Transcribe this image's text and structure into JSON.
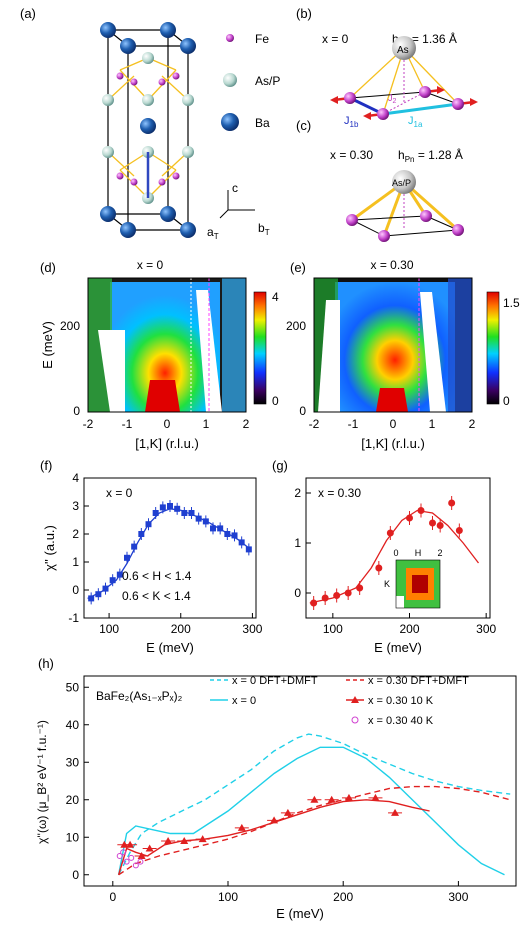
{
  "panels": {
    "a": {
      "label": "(a)",
      "legend": [
        {
          "name": "Fe",
          "color": "#c040c8"
        },
        {
          "name": "As/P",
          "color": "#b8d8d0"
        },
        {
          "name": "Ba",
          "color": "#1f5fb0"
        }
      ],
      "axes": {
        "c": "c",
        "a": "a",
        "a_sub": "T",
        "b": "b",
        "b_sub": "T"
      }
    },
    "b": {
      "label": "(b)",
      "x_text": "x = 0",
      "h_text": "h",
      "h_sub": "Pn",
      "h_value": " = 1.36 Å",
      "atom_label": "As",
      "j1b_main": "J",
      "j1b_sub": "1b",
      "j1a_main": "J",
      "j1a_sub": "1a",
      "j2_main": "J",
      "j2_sub": "2"
    },
    "c": {
      "label": "(c)",
      "x_text": "x = 0.30",
      "h_text": "h",
      "h_sub": "Pn",
      "h_value": " = 1.28 Å",
      "atom_label": "As/P"
    },
    "d": {
      "label": "(d)",
      "title": "x = 0",
      "ylabel": "E (meV)",
      "xlabel": "[1,K] (r.l.u.)",
      "xticks": [
        "-2",
        "-1",
        "0",
        "1",
        "2"
      ],
      "yticks": [
        "0",
        "200"
      ],
      "cbar_ticks": [
        "4",
        "0"
      ]
    },
    "e": {
      "label": "(e)",
      "title": "x = 0.30",
      "xlabel": "[1,K] (r.l.u.)",
      "xticks": [
        "-2",
        "-1",
        "0",
        "1",
        "2"
      ],
      "yticks": [
        "0",
        "200"
      ],
      "cbar_ticks": [
        "1.5",
        "0"
      ]
    },
    "f": {
      "label": "(f)",
      "ylabel": "χ'' (a.u.)",
      "xlabel": "E (meV)",
      "text_x": "x = 0",
      "text_h": "0.6 < H < 1.4",
      "text_k": "0.6 < K < 1.4",
      "xticks": [
        "100",
        "200",
        "300"
      ],
      "yticks": [
        "-1",
        "0",
        "1",
        "2",
        "3",
        "4"
      ]
    },
    "g": {
      "label": "(g)",
      "xlabel": "E (meV)",
      "text_x": "x = 0.30",
      "inset_xticks": [
        "0",
        "H",
        "2"
      ],
      "inset_ylabel": "K",
      "xticks": [
        "100",
        "200",
        "300"
      ],
      "yticks": [
        "0",
        "1",
        "2"
      ]
    },
    "h": {
      "label": "(h)",
      "ylabel": "χ''(ω) (μ_B² eV⁻¹ f.u.⁻¹)",
      "xlabel": "E (meV)",
      "compound": "BaFe₂(As₁₋ₓPₓ)₂",
      "legend": [
        "x = 0  DFT+DMFT",
        "x = 0",
        "x = 0.30 DFT+DMFT",
        "x = 0.30 10 K",
        "x = 0.30 40 K"
      ],
      "xticks": [
        "0",
        "100",
        "200",
        "300"
      ],
      "yticks": [
        "0",
        "10",
        "20",
        "30",
        "40",
        "50"
      ]
    }
  },
  "colors": {
    "blue": "#1f3fd0",
    "red": "#e02020",
    "cyan": "#20d0e8",
    "darkred": "#e02020",
    "magenta": "#d040d0"
  },
  "chart_data": [
    {
      "type": "scatter",
      "panel": "f",
      "xlim": [
        65,
        305
      ],
      "ylim": [
        -1,
        4
      ],
      "series": [
        {
          "kind": "points",
          "x": [
            75,
            85,
            95,
            105,
            115,
            125,
            135,
            145,
            155,
            165,
            175,
            185,
            195,
            205,
            215,
            225,
            235,
            245,
            255,
            265,
            275,
            285,
            295
          ],
          "y": [
            -0.3,
            -0.15,
            0.05,
            0.35,
            0.55,
            1.15,
            1.55,
            2.0,
            2.35,
            2.75,
            2.95,
            3.0,
            2.9,
            2.75,
            2.75,
            2.55,
            2.45,
            2.2,
            2.2,
            2.0,
            1.95,
            1.7,
            1.45
          ]
        },
        {
          "kind": "fit",
          "x": [
            70,
            90,
            110,
            125,
            140,
            155,
            170,
            185,
            200,
            220,
            240,
            260,
            280,
            295
          ],
          "y": [
            -0.3,
            -0.05,
            0.35,
            0.95,
            1.7,
            2.35,
            2.75,
            2.9,
            2.85,
            2.65,
            2.4,
            2.1,
            1.8,
            1.5
          ]
        }
      ]
    },
    {
      "type": "scatter",
      "panel": "g",
      "xlim": [
        65,
        305
      ],
      "ylim": [
        -0.5,
        2.3
      ],
      "series": [
        {
          "kind": "points",
          "x": [
            75,
            90,
            105,
            120,
            135,
            160,
            175,
            200,
            215,
            230,
            240,
            255,
            265
          ],
          "y": [
            -0.2,
            -0.1,
            -0.05,
            0.0,
            0.1,
            0.5,
            1.2,
            1.5,
            1.65,
            1.4,
            1.35,
            1.8,
            1.25
          ]
        },
        {
          "kind": "fit",
          "x": [
            70,
            100,
            130,
            150,
            170,
            190,
            210,
            230,
            250,
            270,
            290
          ],
          "y": [
            -0.2,
            -0.1,
            0.1,
            0.5,
            1.05,
            1.45,
            1.65,
            1.6,
            1.35,
            1.0,
            0.6
          ]
        }
      ]
    },
    {
      "type": "line",
      "panel": "h",
      "xlim": [
        -25,
        350
      ],
      "ylim": [
        -3,
        53
      ],
      "series": [
        {
          "name": "x = 0  DFT+DMFT",
          "kind": "dashed",
          "x": [
            5,
            15,
            25,
            40,
            60,
            80,
            100,
            120,
            140,
            160,
            170,
            180,
            200,
            220,
            240,
            260,
            280,
            300,
            320,
            345
          ],
          "y": [
            0,
            6,
            11,
            14,
            17,
            20,
            24,
            28,
            33,
            36.5,
            37.5,
            37,
            35,
            32,
            29.5,
            27,
            25,
            23.5,
            22.5,
            21.5
          ]
        },
        {
          "name": "x = 0",
          "kind": "solid",
          "x": [
            5,
            12,
            20,
            35,
            50,
            70,
            100,
            120,
            140,
            160,
            180,
            200,
            220,
            240,
            260,
            280,
            300,
            320,
            340
          ],
          "y": [
            0,
            11,
            13,
            12,
            11,
            11,
            17,
            22,
            27,
            31,
            34,
            34,
            31,
            26,
            20,
            14,
            8,
            3,
            0
          ]
        },
        {
          "name": "x = 0.30 DFT+DMFT",
          "kind": "dashed",
          "x": [
            5,
            20,
            40,
            60,
            80,
            100,
            120,
            140,
            160,
            180,
            200,
            220,
            240,
            260,
            280,
            300,
            320,
            345
          ],
          "y": [
            0,
            3,
            5,
            6.5,
            8,
            9.5,
            11.5,
            14,
            16.5,
            18.5,
            20,
            21.5,
            23,
            23.5,
            23.5,
            23,
            22,
            20
          ]
        },
        {
          "name": "x = 0.30 10 K",
          "kind": "solid",
          "x": [
            5,
            12,
            20,
            30,
            45,
            60,
            80,
            100,
            120,
            140,
            160,
            180,
            200,
            220,
            240,
            260,
            275
          ],
          "y": [
            0,
            7,
            6,
            5,
            8,
            9,
            9.5,
            10.5,
            12,
            14,
            16,
            18,
            19.5,
            20,
            19.5,
            18,
            17
          ]
        },
        {
          "name": "x = 0.30 10 K",
          "kind": "points",
          "x": [
            10,
            15,
            25,
            32,
            48,
            62,
            78,
            112,
            140,
            152,
            175,
            190,
            205,
            228,
            245
          ],
          "y": [
            8,
            8,
            5,
            7,
            9,
            9,
            9.5,
            12.5,
            14.5,
            16.5,
            20,
            20,
            20.5,
            20.5,
            16.5
          ]
        },
        {
          "name": "x = 0.30 40 K",
          "kind": "open-circles",
          "x": [
            6,
            9,
            12,
            16,
            20,
            24
          ],
          "y": [
            5,
            6,
            3.5,
            4.5,
            2.5,
            3.5
          ]
        }
      ]
    }
  ]
}
